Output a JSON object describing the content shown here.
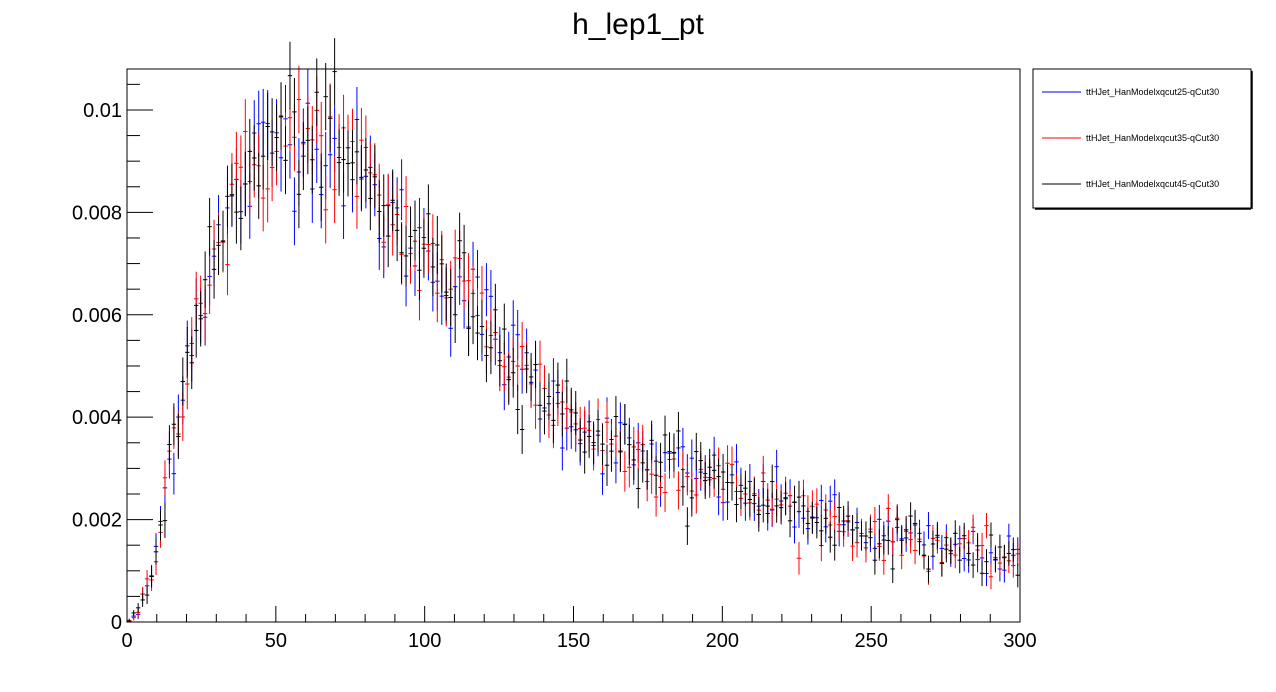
{
  "chart_data": {
    "type": "scatter",
    "title": "h_lep1_pt",
    "xlabel": "",
    "ylabel": "",
    "xlim": [
      0,
      300
    ],
    "ylim": [
      0,
      0.0108
    ],
    "x_ticks": [
      "0",
      "50",
      "100",
      "150",
      "200",
      "250",
      "300"
    ],
    "y_ticks": [
      "0",
      "0.002",
      "0.004",
      "0.006",
      "0.008",
      "0.01"
    ],
    "grid": false,
    "legend_position": "top-right, outside plot",
    "bin_width": 1.5,
    "series": [
      {
        "name": "ttHJet_HanModelxqcut25-qCut30",
        "color": "#0000ff",
        "shape": [
          [
            0,
            0.0
          ],
          [
            2,
            5e-05
          ],
          [
            4,
            0.0002
          ],
          [
            6,
            0.0005
          ],
          [
            8,
            0.0009
          ],
          [
            10,
            0.0015
          ],
          [
            12,
            0.0022
          ],
          [
            14,
            0.003
          ],
          [
            16,
            0.0037
          ],
          [
            18,
            0.0045
          ],
          [
            20,
            0.0052
          ],
          [
            22,
            0.0058
          ],
          [
            25,
            0.0064
          ],
          [
            28,
            0.0069
          ],
          [
            32,
            0.0075
          ],
          [
            36,
            0.0081
          ],
          [
            40,
            0.0086
          ],
          [
            45,
            0.0091
          ],
          [
            50,
            0.0094
          ],
          [
            55,
            0.0095
          ],
          [
            60,
            0.0095
          ],
          [
            65,
            0.0094
          ],
          [
            70,
            0.0092
          ],
          [
            75,
            0.0089
          ],
          [
            80,
            0.0085
          ],
          [
            85,
            0.0081
          ],
          [
            90,
            0.0078
          ],
          [
            95,
            0.0075
          ],
          [
            100,
            0.0072
          ],
          [
            105,
            0.0069
          ],
          [
            110,
            0.0066
          ],
          [
            115,
            0.0063
          ],
          [
            120,
            0.0059
          ],
          [
            125,
            0.0055
          ],
          [
            130,
            0.0051
          ],
          [
            135,
            0.0048
          ],
          [
            140,
            0.0045
          ],
          [
            145,
            0.0042
          ],
          [
            150,
            0.004
          ],
          [
            155,
            0.0038
          ],
          [
            160,
            0.0036
          ],
          [
            165,
            0.0034
          ],
          [
            170,
            0.0033
          ],
          [
            175,
            0.0032
          ],
          [
            180,
            0.0031
          ],
          [
            185,
            0.003
          ],
          [
            190,
            0.0029
          ],
          [
            195,
            0.0028
          ],
          [
            200,
            0.0027
          ],
          [
            205,
            0.0026
          ],
          [
            210,
            0.0025
          ],
          [
            215,
            0.0024
          ],
          [
            220,
            0.0023
          ],
          [
            225,
            0.0022
          ],
          [
            230,
            0.0021
          ],
          [
            235,
            0.002
          ],
          [
            240,
            0.0019
          ],
          [
            245,
            0.0018
          ],
          [
            250,
            0.00175
          ],
          [
            255,
            0.0017
          ],
          [
            260,
            0.0016
          ],
          [
            265,
            0.00155
          ],
          [
            270,
            0.0015
          ],
          [
            275,
            0.00145
          ],
          [
            280,
            0.0014
          ],
          [
            285,
            0.00135
          ],
          [
            290,
            0.0013
          ],
          [
            295,
            0.00125
          ],
          [
            300,
            0.0012
          ]
        ]
      },
      {
        "name": "ttHJet_HanModelxqcut35-qCut30",
        "color": "#ff0000",
        "shape": [
          [
            0,
            0.0
          ],
          [
            2,
            5e-05
          ],
          [
            4,
            0.0002
          ],
          [
            6,
            0.0005
          ],
          [
            8,
            0.0009
          ],
          [
            10,
            0.0015
          ],
          [
            12,
            0.0022
          ],
          [
            14,
            0.003
          ],
          [
            16,
            0.0037
          ],
          [
            18,
            0.0045
          ],
          [
            20,
            0.0052
          ],
          [
            22,
            0.0058
          ],
          [
            25,
            0.0064
          ],
          [
            28,
            0.0069
          ],
          [
            32,
            0.0075
          ],
          [
            36,
            0.0081
          ],
          [
            40,
            0.0086
          ],
          [
            45,
            0.0091
          ],
          [
            50,
            0.0094
          ],
          [
            55,
            0.0095
          ],
          [
            60,
            0.0095
          ],
          [
            65,
            0.0094
          ],
          [
            70,
            0.0092
          ],
          [
            75,
            0.0089
          ],
          [
            80,
            0.0085
          ],
          [
            85,
            0.0081
          ],
          [
            90,
            0.0078
          ],
          [
            95,
            0.0075
          ],
          [
            100,
            0.0072
          ],
          [
            105,
            0.0069
          ],
          [
            110,
            0.0066
          ],
          [
            115,
            0.0063
          ],
          [
            120,
            0.0059
          ],
          [
            125,
            0.0055
          ],
          [
            130,
            0.0051
          ],
          [
            135,
            0.0048
          ],
          [
            140,
            0.0045
          ],
          [
            145,
            0.0042
          ],
          [
            150,
            0.004
          ],
          [
            155,
            0.0038
          ],
          [
            160,
            0.0036
          ],
          [
            165,
            0.0034
          ],
          [
            170,
            0.0033
          ],
          [
            175,
            0.0032
          ],
          [
            180,
            0.0031
          ],
          [
            185,
            0.003
          ],
          [
            190,
            0.0029
          ],
          [
            195,
            0.0028
          ],
          [
            200,
            0.0027
          ],
          [
            205,
            0.0026
          ],
          [
            210,
            0.0025
          ],
          [
            215,
            0.0024
          ],
          [
            220,
            0.0023
          ],
          [
            225,
            0.0022
          ],
          [
            230,
            0.0021
          ],
          [
            235,
            0.002
          ],
          [
            240,
            0.0019
          ],
          [
            245,
            0.0018
          ],
          [
            250,
            0.00175
          ],
          [
            255,
            0.0017
          ],
          [
            260,
            0.0016
          ],
          [
            265,
            0.00155
          ],
          [
            270,
            0.0015
          ],
          [
            275,
            0.00145
          ],
          [
            280,
            0.0014
          ],
          [
            285,
            0.00135
          ],
          [
            290,
            0.0013
          ],
          [
            295,
            0.00125
          ],
          [
            300,
            0.0012
          ]
        ]
      },
      {
        "name": "ttHJet_HanModelxqcut45-qCut30",
        "color": "#000000",
        "shape": [
          [
            0,
            0.0
          ],
          [
            2,
            5e-05
          ],
          [
            4,
            0.0002
          ],
          [
            6,
            0.0005
          ],
          [
            8,
            0.0009
          ],
          [
            10,
            0.0015
          ],
          [
            12,
            0.0022
          ],
          [
            14,
            0.003
          ],
          [
            16,
            0.0037
          ],
          [
            18,
            0.0045
          ],
          [
            20,
            0.0052
          ],
          [
            22,
            0.0058
          ],
          [
            25,
            0.0064
          ],
          [
            28,
            0.0069
          ],
          [
            32,
            0.0075
          ],
          [
            36,
            0.0081
          ],
          [
            40,
            0.0086
          ],
          [
            45,
            0.0091
          ],
          [
            50,
            0.0094
          ],
          [
            55,
            0.0095
          ],
          [
            60,
            0.0095
          ],
          [
            65,
            0.0094
          ],
          [
            70,
            0.0092
          ],
          [
            75,
            0.0089
          ],
          [
            80,
            0.0085
          ],
          [
            85,
            0.0081
          ],
          [
            90,
            0.0078
          ],
          [
            95,
            0.0075
          ],
          [
            100,
            0.0072
          ],
          [
            105,
            0.0069
          ],
          [
            110,
            0.0066
          ],
          [
            115,
            0.0063
          ],
          [
            120,
            0.0059
          ],
          [
            125,
            0.0055
          ],
          [
            130,
            0.0051
          ],
          [
            135,
            0.0048
          ],
          [
            140,
            0.0045
          ],
          [
            145,
            0.0042
          ],
          [
            150,
            0.004
          ],
          [
            155,
            0.0038
          ],
          [
            160,
            0.0036
          ],
          [
            165,
            0.0034
          ],
          [
            170,
            0.0033
          ],
          [
            175,
            0.0032
          ],
          [
            180,
            0.0031
          ],
          [
            185,
            0.003
          ],
          [
            190,
            0.0029
          ],
          [
            195,
            0.0028
          ],
          [
            200,
            0.0027
          ],
          [
            205,
            0.0026
          ],
          [
            210,
            0.0025
          ],
          [
            215,
            0.0024
          ],
          [
            220,
            0.0023
          ],
          [
            225,
            0.0022
          ],
          [
            230,
            0.0021
          ],
          [
            235,
            0.002
          ],
          [
            240,
            0.0019
          ],
          [
            245,
            0.0018
          ],
          [
            250,
            0.00175
          ],
          [
            255,
            0.0017
          ],
          [
            260,
            0.0016
          ],
          [
            265,
            0.00155
          ],
          [
            270,
            0.0015
          ],
          [
            275,
            0.00145
          ],
          [
            280,
            0.0014
          ],
          [
            285,
            0.00135
          ],
          [
            290,
            0.0013
          ],
          [
            295,
            0.00125
          ],
          [
            300,
            0.0012
          ]
        ]
      }
    ]
  }
}
